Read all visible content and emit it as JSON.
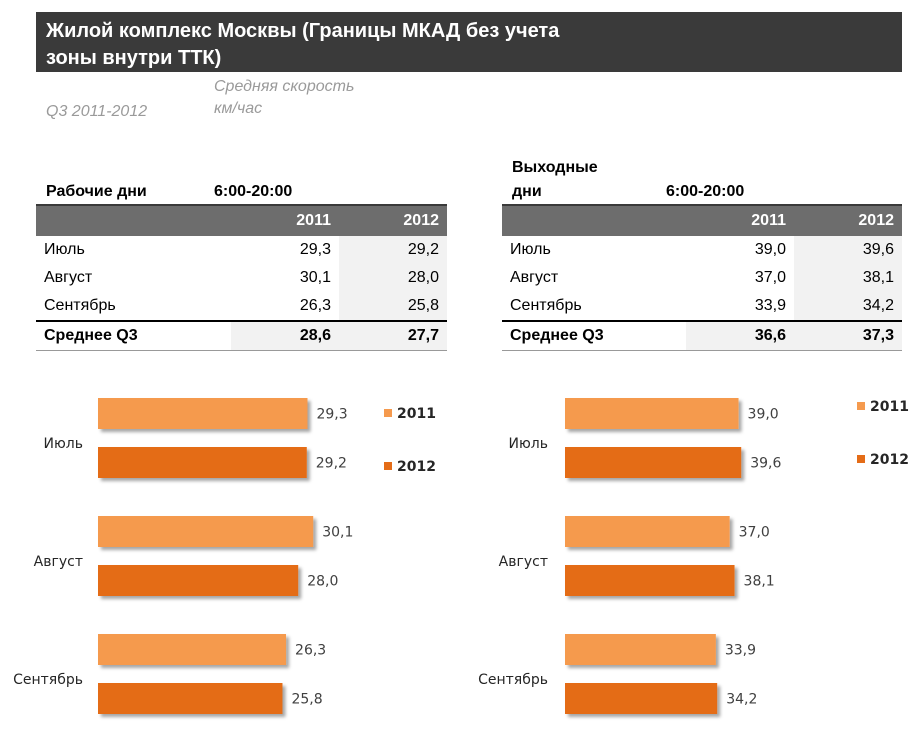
{
  "title_line1": "Жилой комплекс Москвы (Границы МКАД без учета",
  "title_line2": "зоны внутри ТТК)",
  "subtitle_period": "Q3 2011-2012",
  "subtitle_metric_line1": "Средняя скорость",
  "subtitle_metric_line2": "км/час",
  "weekday": {
    "label": "Рабочие дни",
    "time": "6:00-20:00",
    "year1": "2011",
    "year2": "2012",
    "rows": [
      {
        "month": "Июль",
        "v2011": "29,3",
        "v2012": "29,2"
      },
      {
        "month": "Август",
        "v2011": "30,1",
        "v2012": "28,0"
      },
      {
        "month": "Сентябрь",
        "v2011": "26,3",
        "v2012": "25,8"
      }
    ],
    "avg": {
      "label": "Среднее Q3",
      "v2011": "28,6",
      "v2012": "27,7"
    }
  },
  "weekend": {
    "label_line1": "Выходные",
    "label_line2": "дни",
    "time": "6:00-20:00",
    "year1": "2011",
    "year2": "2012",
    "rows": [
      {
        "month": "Июль",
        "v2011": "39,0",
        "v2012": "39,6"
      },
      {
        "month": "Август",
        "v2011": "37,0",
        "v2012": "38,1"
      },
      {
        "month": "Сентябрь",
        "v2011": "33,9",
        "v2012": "34,2"
      }
    ],
    "avg": {
      "label": "Среднее Q3",
      "v2011": "36,6",
      "v2012": "37,3"
    }
  },
  "colors": {
    "s2011": "#f59a4e",
    "s2012": "#e46c17"
  },
  "chart_data": [
    {
      "type": "bar",
      "orientation": "horizontal",
      "categories": [
        "Июль",
        "Август",
        "Сентябрь"
      ],
      "series": [
        {
          "name": "2011",
          "values": [
            29.3,
            30.1,
            26.3
          ]
        },
        {
          "name": "2012",
          "values": [
            29.2,
            28.0,
            25.8
          ]
        }
      ],
      "legend": "top-right",
      "grid": false
    },
    {
      "type": "bar",
      "orientation": "horizontal",
      "categories": [
        "Июль",
        "Август",
        "Сентябрь"
      ],
      "series": [
        {
          "name": "2011",
          "values": [
            39.0,
            37.0,
            33.9
          ]
        },
        {
          "name": "2012",
          "values": [
            39.6,
            38.1,
            34.2
          ]
        }
      ],
      "legend": "top-right",
      "grid": false
    }
  ]
}
